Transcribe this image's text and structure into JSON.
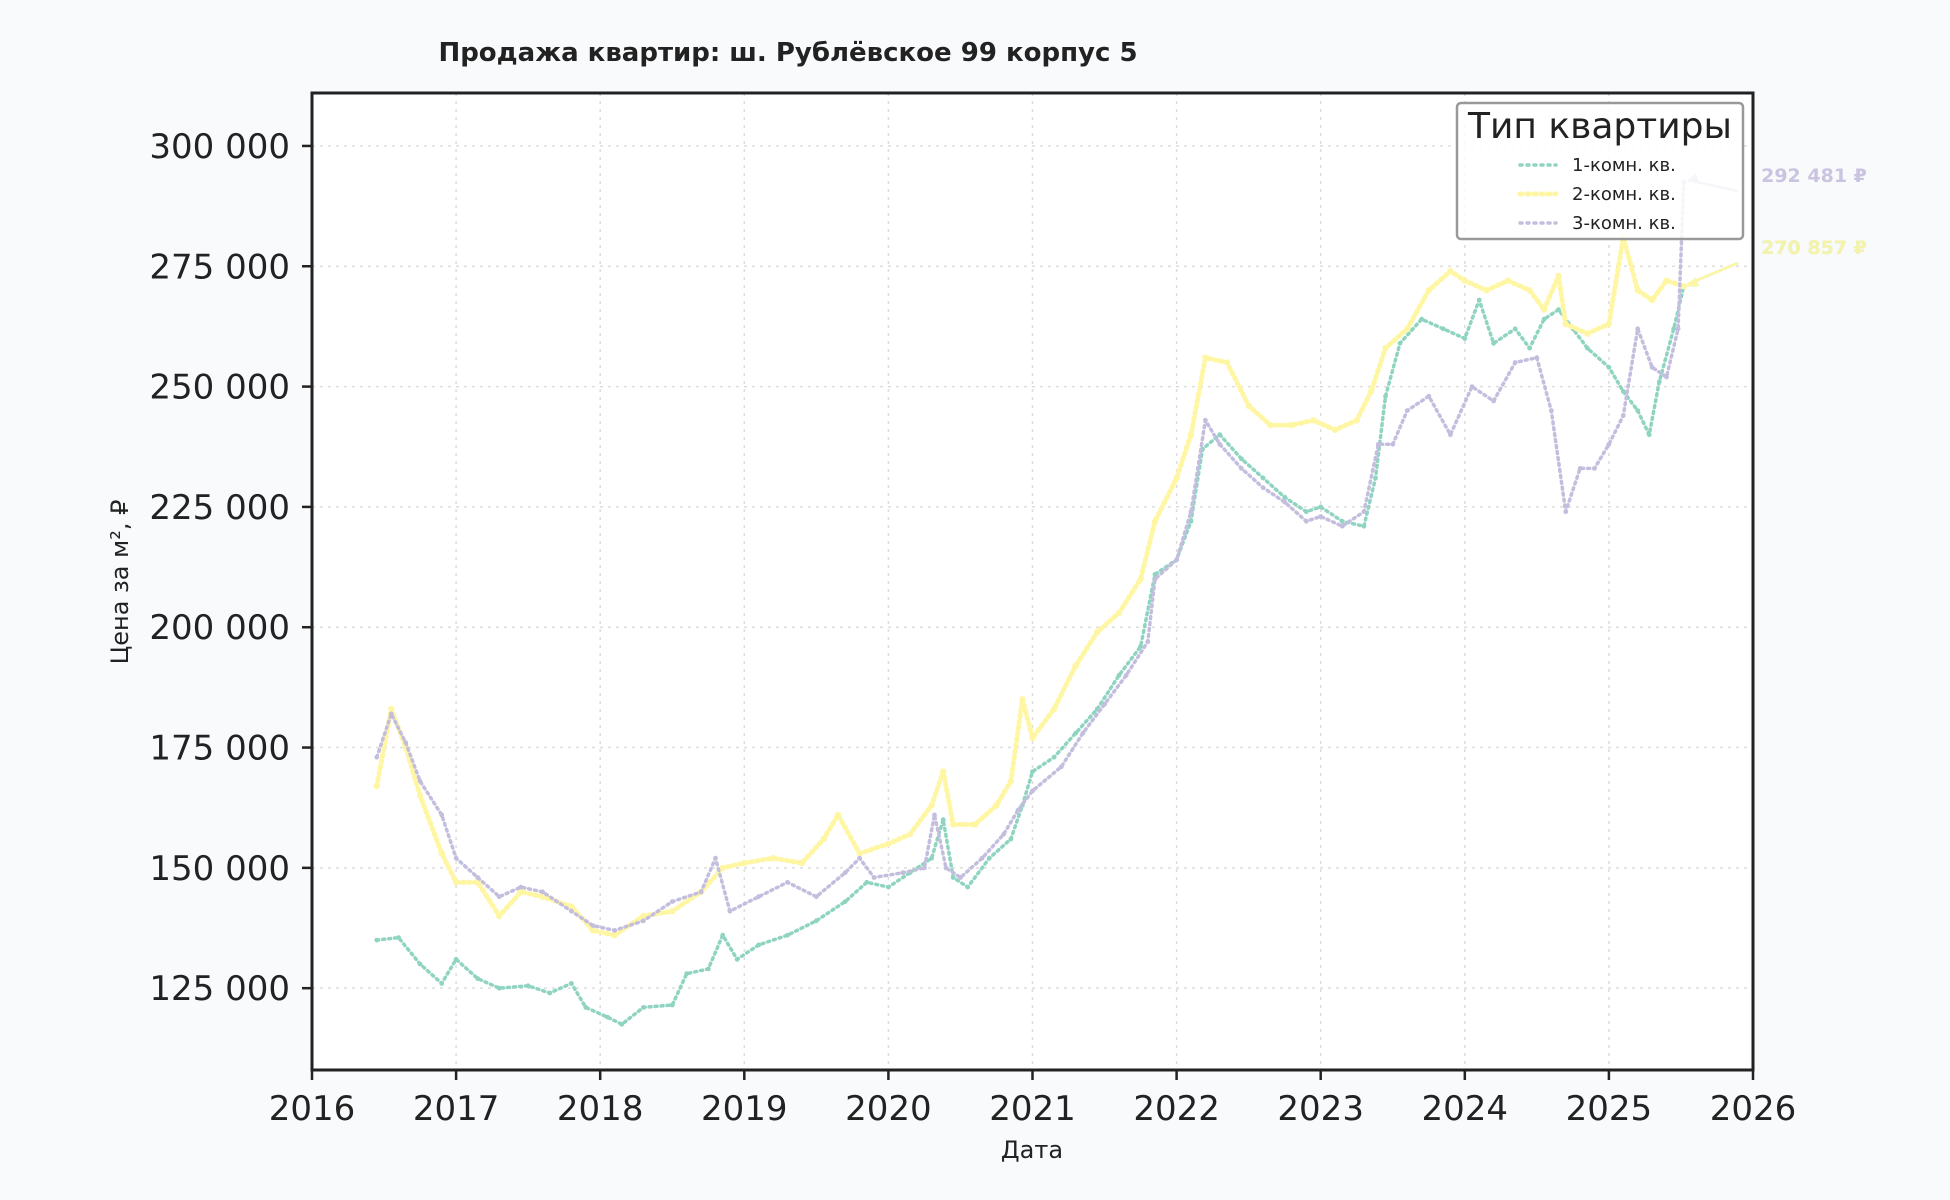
{
  "chart_data": {
    "type": "line",
    "title": "Продажа квартир: ш. Рублёвское 99 корпус 5",
    "xlabel": "Дата",
    "ylabel": "Цена за м², ₽",
    "xlim": [
      2016,
      2026
    ],
    "ylim": [
      108000,
      311000
    ],
    "xticks": [
      "2016",
      "2017",
      "2018",
      "2019",
      "2020",
      "2021",
      "2022",
      "2023",
      "2024",
      "2025",
      "2026"
    ],
    "yticks": [
      125000,
      150000,
      175000,
      200000,
      225000,
      250000,
      275000,
      300000
    ],
    "ytick_labels": [
      "125 000",
      "150 000",
      "175 000",
      "200 000",
      "225 000",
      "250 000",
      "275 000",
      "300 000"
    ],
    "grid": true,
    "legend": {
      "title": "Тип квартиры",
      "position": "top-right"
    },
    "series": [
      {
        "name": "1-комн. кв.",
        "color": "#8fd4c1",
        "points": [
          [
            2016.45,
            135000
          ],
          [
            2016.6,
            135500
          ],
          [
            2016.75,
            130000
          ],
          [
            2016.9,
            126000
          ],
          [
            2017.0,
            131000
          ],
          [
            2017.15,
            127000
          ],
          [
            2017.3,
            125000
          ],
          [
            2017.5,
            125500
          ],
          [
            2017.65,
            124000
          ],
          [
            2017.8,
            126000
          ],
          [
            2017.9,
            121000
          ],
          [
            2018.05,
            119000
          ],
          [
            2018.15,
            117500
          ],
          [
            2018.3,
            121000
          ],
          [
            2018.5,
            121500
          ],
          [
            2018.6,
            128000
          ],
          [
            2018.75,
            129000
          ],
          [
            2018.85,
            136000
          ],
          [
            2018.95,
            131000
          ],
          [
            2019.1,
            134000
          ],
          [
            2019.3,
            136000
          ],
          [
            2019.5,
            139000
          ],
          [
            2019.7,
            143000
          ],
          [
            2019.85,
            147000
          ],
          [
            2020.0,
            146000
          ],
          [
            2020.15,
            149000
          ],
          [
            2020.3,
            152000
          ],
          [
            2020.38,
            160000
          ],
          [
            2020.45,
            148000
          ],
          [
            2020.55,
            146000
          ],
          [
            2020.7,
            152000
          ],
          [
            2020.85,
            156000
          ],
          [
            2020.93,
            163000
          ],
          [
            2021.0,
            170000
          ],
          [
            2021.15,
            173000
          ],
          [
            2021.3,
            178000
          ],
          [
            2021.45,
            183000
          ],
          [
            2021.6,
            190000
          ],
          [
            2021.75,
            196000
          ],
          [
            2021.85,
            211000
          ],
          [
            2022.0,
            214000
          ],
          [
            2022.1,
            222000
          ],
          [
            2022.18,
            237000
          ],
          [
            2022.3,
            240000
          ],
          [
            2022.45,
            235000
          ],
          [
            2022.6,
            231000
          ],
          [
            2022.75,
            227000
          ],
          [
            2022.9,
            224000
          ],
          [
            2023.0,
            225000
          ],
          [
            2023.15,
            222000
          ],
          [
            2023.3,
            221000
          ],
          [
            2023.38,
            231000
          ],
          [
            2023.45,
            248000
          ],
          [
            2023.55,
            259000
          ],
          [
            2023.7,
            264000
          ],
          [
            2023.85,
            262000
          ],
          [
            2024.0,
            260000
          ],
          [
            2024.1,
            268000
          ],
          [
            2024.2,
            259000
          ],
          [
            2024.35,
            262000
          ],
          [
            2024.45,
            258000
          ],
          [
            2024.55,
            264000
          ],
          [
            2024.65,
            266000
          ],
          [
            2024.75,
            262000
          ],
          [
            2024.85,
            258000
          ],
          [
            2025.0,
            254000
          ],
          [
            2025.1,
            249000
          ],
          [
            2025.2,
            245000
          ],
          [
            2025.28,
            240000
          ],
          [
            2025.35,
            251000
          ],
          [
            2025.45,
            262000
          ],
          [
            2025.52,
            270857
          ]
        ],
        "last_value_label": "270 857 ₽"
      },
      {
        "name": "2-комн. кв.",
        "color": "#fff6a3",
        "points": [
          [
            2016.45,
            167000
          ],
          [
            2016.55,
            183000
          ],
          [
            2016.65,
            175000
          ],
          [
            2016.75,
            165000
          ],
          [
            2016.9,
            153000
          ],
          [
            2017.0,
            147000
          ],
          [
            2017.15,
            147000
          ],
          [
            2017.3,
            140000
          ],
          [
            2017.45,
            145000
          ],
          [
            2017.6,
            144000
          ],
          [
            2017.8,
            142000
          ],
          [
            2017.95,
            137000
          ],
          [
            2018.1,
            136000
          ],
          [
            2018.3,
            140000
          ],
          [
            2018.5,
            141000
          ],
          [
            2018.7,
            145000
          ],
          [
            2018.85,
            150000
          ],
          [
            2019.0,
            151000
          ],
          [
            2019.2,
            152000
          ],
          [
            2019.4,
            151000
          ],
          [
            2019.55,
            156000
          ],
          [
            2019.65,
            161000
          ],
          [
            2019.8,
            153000
          ],
          [
            2020.0,
            155000
          ],
          [
            2020.15,
            157000
          ],
          [
            2020.3,
            163000
          ],
          [
            2020.38,
            170000
          ],
          [
            2020.45,
            159000
          ],
          [
            2020.6,
            159000
          ],
          [
            2020.75,
            163000
          ],
          [
            2020.85,
            168000
          ],
          [
            2020.93,
            185000
          ],
          [
            2021.0,
            177000
          ],
          [
            2021.15,
            183000
          ],
          [
            2021.3,
            192000
          ],
          [
            2021.45,
            199000
          ],
          [
            2021.6,
            203000
          ],
          [
            2021.75,
            210000
          ],
          [
            2021.85,
            222000
          ],
          [
            2022.0,
            231000
          ],
          [
            2022.1,
            240000
          ],
          [
            2022.2,
            256000
          ],
          [
            2022.35,
            255000
          ],
          [
            2022.5,
            246000
          ],
          [
            2022.65,
            242000
          ],
          [
            2022.8,
            242000
          ],
          [
            2022.95,
            243000
          ],
          [
            2023.1,
            241000
          ],
          [
            2023.25,
            243000
          ],
          [
            2023.35,
            249000
          ],
          [
            2023.45,
            258000
          ],
          [
            2023.6,
            262000
          ],
          [
            2023.75,
            270000
          ],
          [
            2023.9,
            274000
          ],
          [
            2024.0,
            272000
          ],
          [
            2024.15,
            270000
          ],
          [
            2024.3,
            272000
          ],
          [
            2024.45,
            270000
          ],
          [
            2024.55,
            266000
          ],
          [
            2024.65,
            273000
          ],
          [
            2024.7,
            263000
          ],
          [
            2024.85,
            261000
          ],
          [
            2025.0,
            263000
          ],
          [
            2025.1,
            281000
          ],
          [
            2025.2,
            270000
          ],
          [
            2025.3,
            268000
          ],
          [
            2025.4,
            272000
          ],
          [
            2025.52,
            270857
          ]
        ],
        "last_value_label": "270 857 ₽"
      },
      {
        "name": "3-комн. кв.",
        "color": "#c4bede",
        "points": [
          [
            2016.45,
            173000
          ],
          [
            2016.55,
            182000
          ],
          [
            2016.65,
            176000
          ],
          [
            2016.75,
            168000
          ],
          [
            2016.9,
            161000
          ],
          [
            2017.0,
            152000
          ],
          [
            2017.15,
            148000
          ],
          [
            2017.3,
            144000
          ],
          [
            2017.45,
            146000
          ],
          [
            2017.6,
            145000
          ],
          [
            2017.8,
            141000
          ],
          [
            2017.95,
            138000
          ],
          [
            2018.1,
            137000
          ],
          [
            2018.3,
            139000
          ],
          [
            2018.5,
            143000
          ],
          [
            2018.7,
            145000
          ],
          [
            2018.8,
            152000
          ],
          [
            2018.9,
            141000
          ],
          [
            2019.1,
            144000
          ],
          [
            2019.3,
            147000
          ],
          [
            2019.5,
            144000
          ],
          [
            2019.7,
            149000
          ],
          [
            2019.8,
            152000
          ],
          [
            2019.9,
            148000
          ],
          [
            2020.1,
            149000
          ],
          [
            2020.25,
            150000
          ],
          [
            2020.32,
            161000
          ],
          [
            2020.4,
            150000
          ],
          [
            2020.5,
            148000
          ],
          [
            2020.65,
            152000
          ],
          [
            2020.8,
            157000
          ],
          [
            2020.9,
            162000
          ],
          [
            2021.0,
            166000
          ],
          [
            2021.2,
            171000
          ],
          [
            2021.35,
            178000
          ],
          [
            2021.5,
            184000
          ],
          [
            2021.65,
            190000
          ],
          [
            2021.8,
            197000
          ],
          [
            2021.85,
            210000
          ],
          [
            2022.0,
            214000
          ],
          [
            2022.1,
            224000
          ],
          [
            2022.2,
            243000
          ],
          [
            2022.3,
            238000
          ],
          [
            2022.45,
            233000
          ],
          [
            2022.6,
            229000
          ],
          [
            2022.75,
            226000
          ],
          [
            2022.9,
            222000
          ],
          [
            2023.0,
            223000
          ],
          [
            2023.15,
            221000
          ],
          [
            2023.3,
            224000
          ],
          [
            2023.4,
            238000
          ],
          [
            2023.5,
            238000
          ],
          [
            2023.6,
            245000
          ],
          [
            2023.75,
            248000
          ],
          [
            2023.9,
            240000
          ],
          [
            2024.05,
            250000
          ],
          [
            2024.2,
            247000
          ],
          [
            2024.35,
            255000
          ],
          [
            2024.5,
            256000
          ],
          [
            2024.6,
            245000
          ],
          [
            2024.7,
            224000
          ],
          [
            2024.8,
            233000
          ],
          [
            2024.9,
            233000
          ],
          [
            2025.0,
            238000
          ],
          [
            2025.1,
            244000
          ],
          [
            2025.2,
            262000
          ],
          [
            2025.3,
            254000
          ],
          [
            2025.4,
            252000
          ],
          [
            2025.48,
            262000
          ],
          [
            2025.52,
            292481
          ]
        ],
        "last_value_label": "292 481 ₽"
      }
    ]
  }
}
